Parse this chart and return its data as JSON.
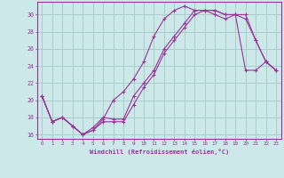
{
  "xlabel": "Windchill (Refroidissement éolien,°C)",
  "bg_color": "#cce8e8",
  "line_color": "#993399",
  "grid_color": "#aacccc",
  "line1_x": [
    0,
    1,
    2,
    3,
    4,
    5,
    6,
    7,
    8,
    9,
    10,
    11,
    12,
    13,
    14,
    15,
    16,
    17,
    18,
    19,
    20,
    21,
    22,
    23
  ],
  "line1_y": [
    20.5,
    17.5,
    18.0,
    17.0,
    16.0,
    16.5,
    17.5,
    17.5,
    17.5,
    19.5,
    21.5,
    23.0,
    25.5,
    27.0,
    28.5,
    30.0,
    30.5,
    30.5,
    30.0,
    30.0,
    30.0,
    27.0,
    24.5,
    23.5
  ],
  "line2_x": [
    0,
    1,
    2,
    3,
    4,
    5,
    6,
    7,
    8,
    9,
    10,
    11,
    12,
    13,
    14,
    15,
    16,
    17,
    18,
    19,
    20,
    21,
    22,
    23
  ],
  "line2_y": [
    20.5,
    17.5,
    18.0,
    17.0,
    16.0,
    16.5,
    17.8,
    20.0,
    21.0,
    22.5,
    24.5,
    27.5,
    29.5,
    30.5,
    31.0,
    30.5,
    30.5,
    30.0,
    29.5,
    30.0,
    29.5,
    27.0,
    24.5,
    23.5
  ],
  "line3_x": [
    0,
    1,
    2,
    3,
    4,
    5,
    6,
    7,
    8,
    9,
    10,
    11,
    12,
    13,
    14,
    15,
    16,
    17,
    18,
    19,
    20,
    21,
    22,
    23
  ],
  "line3_y": [
    20.5,
    17.5,
    18.0,
    17.0,
    16.0,
    16.8,
    18.0,
    17.8,
    17.8,
    20.5,
    22.0,
    23.5,
    26.0,
    27.5,
    29.0,
    30.5,
    30.5,
    30.5,
    30.0,
    30.0,
    23.5,
    23.5,
    24.5,
    23.5
  ],
  "ylim": [
    15.5,
    31.5
  ],
  "xlim": [
    -0.5,
    23.5
  ],
  "yticks": [
    16,
    18,
    20,
    22,
    24,
    26,
    28,
    30
  ],
  "xticks": [
    0,
    1,
    2,
    3,
    4,
    5,
    6,
    7,
    8,
    9,
    10,
    11,
    12,
    13,
    14,
    15,
    16,
    17,
    18,
    19,
    20,
    21,
    22,
    23
  ]
}
